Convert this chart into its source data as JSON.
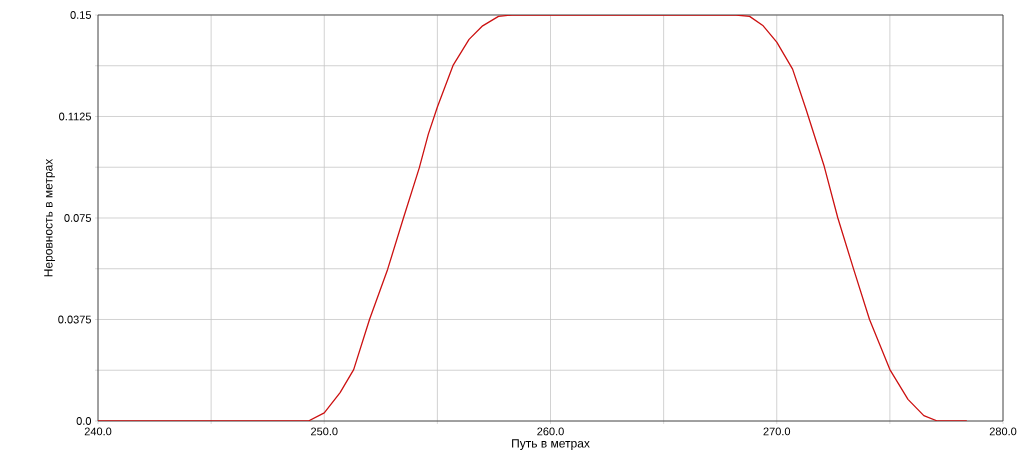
{
  "chart_data": {
    "type": "line",
    "xlabel": "Путь в метрах",
    "ylabel": "Неровность в метрах",
    "xlim": [
      240,
      280
    ],
    "ylim": [
      0,
      0.15
    ],
    "xticks": [
      {
        "value": 240,
        "label": "240.0"
      },
      {
        "value": 245,
        "label": null
      },
      {
        "value": 250,
        "label": "250.0"
      },
      {
        "value": 255,
        "label": null
      },
      {
        "value": 260,
        "label": "260.0"
      },
      {
        "value": 265,
        "label": null
      },
      {
        "value": 270,
        "label": "270.0"
      },
      {
        "value": 275,
        "label": null
      },
      {
        "value": 280,
        "label": "280.0"
      }
    ],
    "yticks": [
      {
        "value": 0,
        "label": "0.0"
      },
      {
        "value": 0.01875,
        "label": null
      },
      0.0375,
      {
        "value": 0.05625,
        "label": null
      },
      0.075,
      {
        "value": 0.09375,
        "label": null
      },
      0.1125,
      {
        "value": 0.13125,
        "label": null
      },
      0.15
    ],
    "grid": true,
    "marker": "none",
    "line_style": "solid",
    "series": [
      {
        "color": "#cc1111",
        "x": [
          240,
          249.3,
          250.0,
          250.7,
          251.3,
          252.0,
          252.8,
          253.5,
          254.2,
          254.6,
          255.0,
          255.7,
          256.4,
          257.0,
          257.7,
          258.3,
          268.2,
          268.8,
          269.4,
          270.0,
          270.7,
          271.3,
          272.1,
          272.7,
          273.4,
          274.1,
          275.0,
          275.8,
          276.5,
          277.1,
          278.4
        ],
        "values": [
          0,
          0,
          0.003,
          0.0105,
          0.019,
          0.0375,
          0.056,
          0.075,
          0.0935,
          0.106,
          0.116,
          0.1315,
          0.141,
          0.146,
          0.1495,
          0.15,
          0.15,
          0.1495,
          0.146,
          0.14,
          0.13,
          0.115,
          0.094,
          0.075,
          0.056,
          0.0375,
          0.019,
          0.008,
          0.002,
          0,
          0
        ]
      }
    ]
  }
}
